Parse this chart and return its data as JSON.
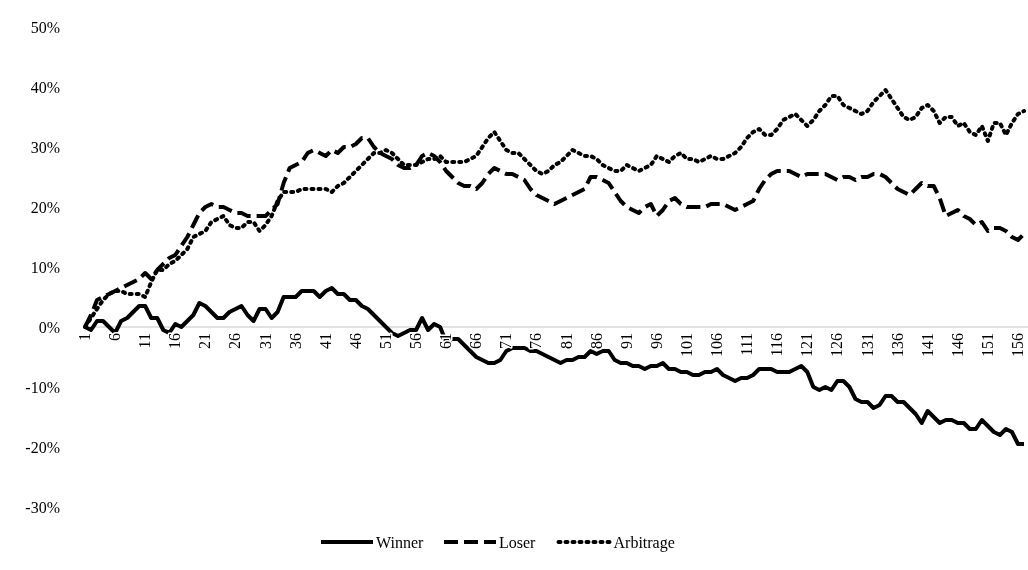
{
  "chart_data": {
    "type": "line",
    "categories": [
      "1",
      null,
      null,
      null,
      null,
      "6",
      null,
      null,
      null,
      null,
      "11",
      null,
      null,
      null,
      null,
      "16",
      null,
      null,
      null,
      null,
      "21",
      null,
      null,
      null,
      null,
      "26",
      null,
      null,
      null,
      null,
      "31",
      null,
      null,
      null,
      null,
      "36",
      null,
      null,
      null,
      null,
      "41",
      null,
      null,
      null,
      null,
      "46",
      null,
      null,
      null,
      null,
      "51",
      null,
      null,
      null,
      null,
      "56",
      null,
      null,
      null,
      null,
      "61",
      null,
      null,
      null,
      null,
      "66",
      null,
      null,
      null,
      null,
      "71",
      null,
      null,
      null,
      null,
      "76",
      null,
      null,
      null,
      null,
      "81",
      null,
      null,
      null,
      null,
      "86",
      null,
      null,
      null,
      null,
      "91",
      null,
      null,
      null,
      null,
      "96",
      null,
      null,
      null,
      null,
      "101",
      null,
      null,
      null,
      null,
      "106",
      null,
      null,
      null,
      null,
      "111",
      null,
      null,
      null,
      null,
      "116",
      null,
      null,
      null,
      null,
      "121",
      null,
      null,
      null,
      null,
      "126",
      null,
      null,
      null,
      null,
      "131",
      null,
      null,
      null,
      null,
      "136",
      null,
      null,
      null,
      null,
      "141",
      null,
      null,
      null,
      null,
      "146",
      null,
      null,
      null,
      null,
      "151",
      null,
      null,
      null,
      null,
      "156",
      null
    ],
    "series": [
      {
        "name": "Winner",
        "color": "#000000",
        "line_style": "solid",
        "values": [
          0,
          -0.5,
          1,
          1,
          0,
          -1,
          1,
          1.5,
          2.5,
          3.5,
          3.5,
          1.5,
          1.5,
          -0.5,
          -1,
          0.5,
          0,
          1,
          2,
          4,
          3.5,
          2.5,
          1.5,
          1.5,
          2.5,
          3,
          3.5,
          2,
          1,
          3,
          3,
          1.5,
          2.5,
          5,
          5,
          5,
          6,
          6,
          6,
          5,
          6,
          6.5,
          5.5,
          5.5,
          4.5,
          4.5,
          3.5,
          3,
          2,
          1,
          0,
          -1,
          -1.5,
          -1,
          -0.5,
          -0.5,
          1.5,
          -0.5,
          0.5,
          0,
          -2.5,
          -2,
          -2,
          -3,
          -4,
          -5,
          -5.5,
          -6,
          -6,
          -5.5,
          -4,
          -3.5,
          -3.5,
          -3.5,
          -4,
          -4,
          -4.5,
          -5,
          -5.5,
          -6,
          -5.5,
          -5.5,
          -5,
          -5,
          -4,
          -4.5,
          -4,
          -4,
          -5.5,
          -6,
          -6,
          -6.5,
          -6.5,
          -7,
          -6.5,
          -6.5,
          -6,
          -7,
          -7,
          -7.5,
          -7.5,
          -8,
          -8,
          -7.5,
          -7.5,
          -7,
          -8,
          -8.5,
          -9,
          -8.5,
          -8.5,
          -8,
          -7,
          -7,
          -7,
          -7.5,
          -7.5,
          -7.5,
          -7,
          -6.5,
          -7.5,
          -10,
          -10.5,
          -10,
          -10.5,
          -9,
          -9,
          -10,
          -12,
          -12.5,
          -12.5,
          -13.5,
          -13,
          -11.5,
          -11.5,
          -12.5,
          -12.5,
          -13.5,
          -14.5,
          -16,
          -14,
          -15,
          -16,
          -15.5,
          -15.5,
          -16,
          -16,
          -17,
          -17,
          -15.5,
          -16.5,
          -17.5,
          -18,
          -17,
          -17.5,
          -19.5,
          -19.5
        ]
      },
      {
        "name": "Loser",
        "color": "#000000",
        "line_style": "dashed",
        "values": [
          0,
          2,
          4.5,
          5,
          5.5,
          6,
          6.5,
          7,
          7.5,
          8,
          9,
          8,
          9.5,
          10.5,
          11.5,
          12,
          13.5,
          15,
          17,
          19,
          20,
          20.5,
          20,
          20,
          19.5,
          19,
          19,
          18.5,
          18.5,
          18.5,
          18.5,
          19.5,
          20.5,
          24,
          26.5,
          27,
          27.5,
          29,
          29.5,
          29,
          28.5,
          29.5,
          29,
          30,
          30,
          30.5,
          31.5,
          31.5,
          30,
          29,
          28.5,
          28,
          27,
          26.5,
          26.5,
          27,
          28.5,
          29,
          28.5,
          27.5,
          26,
          25,
          24,
          23.5,
          23.5,
          23,
          24,
          25.5,
          26.5,
          26,
          25.5,
          25.5,
          25,
          24.5,
          23,
          22,
          21.5,
          21,
          20.5,
          21,
          21.5,
          22,
          22.5,
          23,
          25,
          25,
          24.5,
          24,
          22.5,
          21,
          20,
          19.5,
          19,
          20,
          20.5,
          18.5,
          19.5,
          21,
          21.5,
          20.5,
          20,
          20,
          20,
          20,
          20.5,
          20.5,
          20.5,
          20,
          19.5,
          20,
          20.5,
          21,
          23,
          24.5,
          25.5,
          26,
          26,
          26,
          25.5,
          25,
          25.5,
          25.5,
          25.5,
          25.5,
          25,
          24.5,
          25,
          25,
          24.5,
          25,
          25,
          25.5,
          25.5,
          25,
          24,
          23,
          22.5,
          22,
          23,
          24,
          23.5,
          23.5,
          21.5,
          18.5,
          19,
          19.5,
          18.5,
          18,
          17,
          17.5,
          16,
          16.5,
          16.5,
          16,
          15,
          14.5,
          15.5
        ]
      },
      {
        "name": "Arbitrage",
        "color": "#000000",
        "line_style": "dotted",
        "values": [
          0,
          1.5,
          3,
          4.5,
          5.5,
          6,
          6,
          5.5,
          5.5,
          5.5,
          5,
          7.5,
          9.5,
          9.5,
          10.5,
          11,
          12,
          13,
          15,
          15.5,
          16,
          17.5,
          18,
          18.5,
          17,
          16.5,
          16.5,
          17.5,
          17.5,
          16,
          17,
          18.5,
          21,
          22.5,
          22.5,
          22.5,
          23,
          23,
          23,
          23,
          23,
          22.5,
          23.5,
          24,
          25,
          26,
          27,
          28,
          29,
          29,
          29.5,
          29,
          28,
          27,
          27,
          27,
          27.5,
          28,
          28,
          28.5,
          27.5,
          27.5,
          27.5,
          27.5,
          28,
          28.5,
          30,
          31.5,
          32.5,
          31,
          29.5,
          29,
          29,
          28,
          27,
          26,
          25.5,
          26,
          27,
          27.5,
          28.5,
          29.5,
          29,
          28.5,
          28.5,
          28,
          27,
          26.5,
          26,
          26,
          27,
          26.5,
          26,
          26.5,
          27,
          28.5,
          28,
          27.5,
          28.5,
          29,
          28,
          28,
          27.5,
          28,
          28.5,
          28,
          28,
          28.5,
          29,
          30,
          31.5,
          32.5,
          33,
          32,
          32,
          33,
          34.5,
          35,
          35.5,
          34.5,
          33.5,
          34.5,
          36,
          37,
          38.5,
          38.5,
          37,
          36.5,
          36,
          35.5,
          36,
          37.5,
          38.5,
          39.5,
          38,
          36.5,
          35,
          34.5,
          35,
          36.5,
          37,
          36,
          34,
          35,
          35,
          33.5,
          34,
          32.5,
          32,
          33.5,
          31,
          34,
          34,
          32,
          34,
          35.5,
          36
        ]
      }
    ],
    "ylim": [
      -30,
      50
    ],
    "yticks": [
      {
        "value": -30,
        "label": "-30%"
      },
      {
        "value": -20,
        "label": "-20%"
      },
      {
        "value": -10,
        "label": "-10%"
      },
      {
        "value": 0,
        "label": "0%"
      },
      {
        "value": 10,
        "label": "10%"
      },
      {
        "value": 20,
        "label": "20%"
      },
      {
        "value": 30,
        "label": "30%"
      },
      {
        "value": 40,
        "label": "40%"
      },
      {
        "value": 50,
        "label": "50%"
      }
    ],
    "grid": false,
    "legend": "bottom"
  }
}
